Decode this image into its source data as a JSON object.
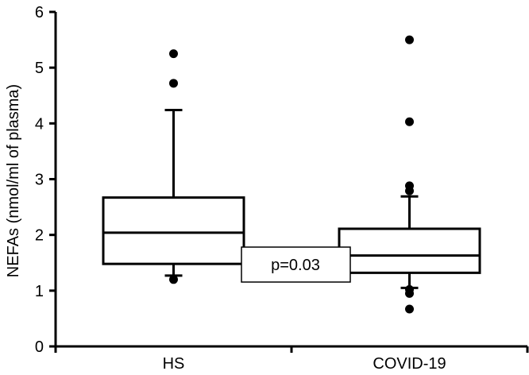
{
  "chart_data": {
    "type": "box",
    "title": "",
    "xlabel": "",
    "ylabel": "NEFAs (nmol/ml of plasma)",
    "ylim": [
      0,
      6
    ],
    "yticks": [
      "0",
      "1",
      "2",
      "3",
      "4",
      "5",
      "6"
    ],
    "categories": [
      "HS",
      "COVID-19"
    ],
    "boxes": [
      {
        "category": "HS",
        "whisker_low": 1.27,
        "q1": 1.48,
        "median": 2.04,
        "q3": 2.67,
        "whisker_high": 4.24,
        "outliers": [
          1.2,
          4.72,
          5.25
        ]
      },
      {
        "category": "COVID-19",
        "whisker_low": 1.05,
        "q1": 1.32,
        "median": 1.63,
        "q3": 2.11,
        "whisker_high": 2.69,
        "outliers": [
          0.67,
          0.95,
          1.02,
          2.79,
          2.88,
          4.03,
          5.5
        ]
      }
    ],
    "annotation": "p=0.03",
    "grid": false
  }
}
